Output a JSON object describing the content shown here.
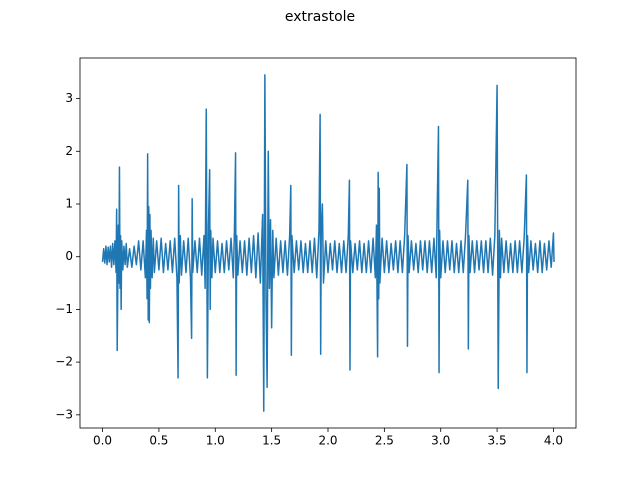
{
  "chart_data": {
    "type": "line",
    "title": "extrastole",
    "color": "#1f77b4",
    "xlim": [
      -0.2,
      4.2
    ],
    "ylim": [
      -3.25,
      3.77
    ],
    "xticks": [
      {
        "value": 0,
        "label": "0.0"
      },
      0.5,
      {
        "value": 1,
        "label": "1.0"
      },
      1.5,
      {
        "value": 2,
        "label": "2.0"
      },
      2.5,
      {
        "value": 3,
        "label": "3.0"
      },
      3.5,
      {
        "value": 4,
        "label": "4.0"
      }
    ],
    "yticks": [
      {
        "value": -3,
        "label": "−3"
      },
      {
        "value": -2,
        "label": "−2"
      },
      {
        "value": -1,
        "label": "−1"
      },
      0,
      1,
      2,
      3
    ],
    "x": [
      0.0,
      0.01,
      0.02,
      0.03,
      0.04,
      0.05,
      0.06,
      0.07,
      0.08,
      0.09,
      0.1,
      0.11,
      0.12,
      0.125,
      0.13,
      0.14,
      0.145,
      0.15,
      0.155,
      0.16,
      0.165,
      0.17,
      0.18,
      0.19,
      0.2,
      0.21,
      0.22,
      0.24,
      0.26,
      0.28,
      0.3,
      0.32,
      0.34,
      0.36,
      0.38,
      0.39,
      0.395,
      0.4,
      0.405,
      0.41,
      0.415,
      0.42,
      0.425,
      0.43,
      0.44,
      0.45,
      0.46,
      0.48,
      0.5,
      0.52,
      0.54,
      0.56,
      0.58,
      0.6,
      0.62,
      0.64,
      0.66,
      0.67,
      0.675,
      0.68,
      0.69,
      0.7,
      0.72,
      0.74,
      0.76,
      0.78,
      0.79,
      0.795,
      0.8,
      0.82,
      0.84,
      0.86,
      0.88,
      0.9,
      0.91,
      0.92,
      0.93,
      0.94,
      0.95,
      0.955,
      0.96,
      0.97,
      0.98,
      1.0,
      1.02,
      1.04,
      1.06,
      1.08,
      1.1,
      1.12,
      1.14,
      1.16,
      1.17,
      1.18,
      1.185,
      1.19,
      1.2,
      1.22,
      1.24,
      1.26,
      1.28,
      1.3,
      1.32,
      1.34,
      1.36,
      1.38,
      1.4,
      1.42,
      1.43,
      1.44,
      1.45,
      1.46,
      1.47,
      1.48,
      1.49,
      1.5,
      1.51,
      1.52,
      1.54,
      1.56,
      1.58,
      1.6,
      1.62,
      1.64,
      1.66,
      1.67,
      1.675,
      1.68,
      1.7,
      1.72,
      1.74,
      1.76,
      1.78,
      1.8,
      1.82,
      1.84,
      1.86,
      1.88,
      1.9,
      1.92,
      1.93,
      1.935,
      1.94,
      1.95,
      1.96,
      1.98,
      2.0,
      2.02,
      2.04,
      2.06,
      2.08,
      2.1,
      2.12,
      2.14,
      2.16,
      2.18,
      2.19,
      2.195,
      2.2,
      2.22,
      2.24,
      2.26,
      2.28,
      2.3,
      2.32,
      2.34,
      2.36,
      2.38,
      2.4,
      2.42,
      2.43,
      2.44,
      2.445,
      2.45,
      2.455,
      2.46,
      2.48,
      2.5,
      2.52,
      2.54,
      2.56,
      2.58,
      2.6,
      2.62,
      2.64,
      2.66,
      2.68,
      2.7,
      2.705,
      2.71,
      2.72,
      2.74,
      2.76,
      2.78,
      2.8,
      2.82,
      2.84,
      2.86,
      2.88,
      2.9,
      2.92,
      2.94,
      2.96,
      2.98,
      2.985,
      2.99,
      3.0,
      3.02,
      3.04,
      3.06,
      3.08,
      3.1,
      3.12,
      3.14,
      3.16,
      3.18,
      3.2,
      3.22,
      3.24,
      3.245,
      3.25,
      3.26,
      3.28,
      3.3,
      3.32,
      3.34,
      3.36,
      3.38,
      3.4,
      3.42,
      3.44,
      3.46,
      3.48,
      3.5,
      3.51,
      3.52,
      3.53,
      3.54,
      3.56,
      3.58,
      3.6,
      3.62,
      3.64,
      3.66,
      3.68,
      3.7,
      3.72,
      3.74,
      3.76,
      3.765,
      3.77,
      3.78,
      3.8,
      3.82,
      3.84,
      3.86,
      3.88,
      3.9,
      3.92,
      3.94,
      3.96,
      3.98,
      4.0,
      4.005
    ],
    "values": [
      -0.1,
      0.15,
      -0.12,
      0.2,
      -0.15,
      0.18,
      -0.1,
      0.2,
      -0.2,
      0.25,
      -0.15,
      0.3,
      -0.3,
      0.9,
      -1.78,
      0.6,
      -0.5,
      1.7,
      -0.6,
      0.4,
      -1.0,
      0.3,
      -0.25,
      0.2,
      -0.15,
      0.25,
      -0.2,
      0.15,
      -0.2,
      0.2,
      -0.15,
      0.3,
      -0.25,
      0.3,
      -0.4,
      0.5,
      -0.8,
      1.95,
      -1.2,
      0.95,
      -1.25,
      0.8,
      -0.6,
      0.5,
      -0.4,
      0.35,
      -0.3,
      0.3,
      -0.25,
      0.35,
      -0.3,
      0.25,
      -0.25,
      0.3,
      -0.3,
      0.35,
      -0.4,
      -2.3,
      1.35,
      -0.5,
      0.4,
      -0.35,
      0.3,
      -0.3,
      0.35,
      -0.4,
      -1.55,
      1.1,
      -0.3,
      0.3,
      -0.3,
      0.35,
      -0.35,
      0.4,
      -0.6,
      2.8,
      -2.3,
      0.6,
      1.65,
      -1.0,
      0.5,
      -0.4,
      0.35,
      -0.3,
      0.3,
      -0.3,
      0.25,
      -0.3,
      0.3,
      -0.25,
      0.35,
      -0.4,
      0.5,
      1.97,
      -2.25,
      0.4,
      -0.35,
      0.3,
      -0.3,
      0.3,
      -0.35,
      0.35,
      -0.3,
      0.4,
      -0.4,
      0.45,
      -0.5,
      0.8,
      -2.93,
      3.45,
      -0.8,
      -2.48,
      2.0,
      -0.6,
      0.7,
      -1.35,
      0.5,
      -0.4,
      0.35,
      -0.35,
      0.3,
      -0.3,
      0.3,
      -0.35,
      0.4,
      1.35,
      -1.87,
      0.4,
      -0.3,
      0.3,
      -0.25,
      0.3,
      -0.3,
      0.25,
      -0.3,
      0.3,
      -0.3,
      0.35,
      -0.4,
      0.5,
      2.7,
      -1.85,
      0.5,
      1.0,
      -0.5,
      0.3,
      -0.3,
      0.25,
      -0.25,
      0.3,
      -0.3,
      0.25,
      -0.3,
      0.3,
      -0.3,
      0.4,
      1.45,
      -2.15,
      0.3,
      -0.3,
      0.25,
      -0.25,
      0.3,
      -0.3,
      0.25,
      -0.3,
      0.3,
      -0.3,
      0.35,
      -0.4,
      0.6,
      -1.9,
      1.6,
      -0.8,
      1.3,
      -0.5,
      0.35,
      -0.3,
      0.3,
      -0.3,
      0.25,
      -0.25,
      0.3,
      -0.3,
      0.3,
      -0.3,
      0.4,
      1.75,
      -1.7,
      0.4,
      -0.3,
      0.3,
      -0.25,
      0.25,
      -0.3,
      0.3,
      -0.25,
      0.3,
      -0.3,
      0.3,
      -0.3,
      0.35,
      -0.4,
      2.47,
      -2.2,
      0.5,
      -0.4,
      0.3,
      -0.3,
      0.3,
      -0.25,
      0.3,
      -0.3,
      0.25,
      -0.3,
      0.3,
      -0.3,
      0.4,
      1.45,
      -1.75,
      0.4,
      -0.3,
      0.3,
      -0.3,
      0.3,
      -0.25,
      0.3,
      -0.3,
      0.3,
      -0.3,
      0.35,
      -0.35,
      0.4,
      3.25,
      -2.5,
      0.5,
      -0.4,
      0.35,
      -0.3,
      0.3,
      -0.3,
      0.25,
      -0.3,
      0.3,
      -0.3,
      0.3,
      -0.3,
      0.35,
      1.55,
      -2.2,
      0.4,
      -0.3,
      0.3,
      -0.25,
      0.25,
      -0.3,
      0.3,
      -0.3,
      0.25,
      -0.25,
      0.3,
      -0.2,
      0.45,
      -0.1
    ]
  }
}
